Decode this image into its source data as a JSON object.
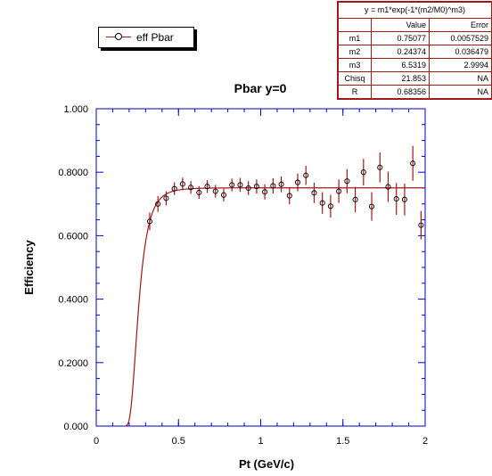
{
  "chart_data": {
    "type": "scatter",
    "title": "Pbar y=0",
    "xlabel": "Pt (GeV/c)",
    "ylabel": "Efficiency",
    "xlim": [
      0,
      2
    ],
    "ylim": [
      0,
      1
    ],
    "x_ticks": [
      {
        "value": 0,
        "label": "0"
      },
      {
        "value": 0.5,
        "label": "0.5"
      },
      {
        "value": 1,
        "label": "1"
      },
      {
        "value": 1.5,
        "label": "1.5"
      },
      {
        "value": 2,
        "label": "2"
      }
    ],
    "y_ticks": [
      {
        "value": 0,
        "label": "0.000"
      },
      {
        "value": 0.2,
        "label": "0.2000"
      },
      {
        "value": 0.4,
        "label": "0.4000"
      },
      {
        "value": 0.6,
        "label": "0.6000"
      },
      {
        "value": 0.8,
        "label": "0.8000"
      },
      {
        "value": 1,
        "label": "1.000"
      }
    ],
    "grid": false,
    "legend_position": "top-left",
    "series": [
      {
        "name": "eff Pbar",
        "points": [
          {
            "x": 0.325,
            "y": 0.645,
            "err": 0.028
          },
          {
            "x": 0.375,
            "y": 0.7,
            "err": 0.025
          },
          {
            "x": 0.425,
            "y": 0.718,
            "err": 0.022
          },
          {
            "x": 0.475,
            "y": 0.748,
            "err": 0.02
          },
          {
            "x": 0.525,
            "y": 0.763,
            "err": 0.02
          },
          {
            "x": 0.575,
            "y": 0.752,
            "err": 0.02
          },
          {
            "x": 0.625,
            "y": 0.736,
            "err": 0.02
          },
          {
            "x": 0.675,
            "y": 0.755,
            "err": 0.02
          },
          {
            "x": 0.725,
            "y": 0.74,
            "err": 0.02
          },
          {
            "x": 0.775,
            "y": 0.728,
            "err": 0.02
          },
          {
            "x": 0.825,
            "y": 0.76,
            "err": 0.02
          },
          {
            "x": 0.875,
            "y": 0.76,
            "err": 0.022
          },
          {
            "x": 0.925,
            "y": 0.75,
            "err": 0.022
          },
          {
            "x": 0.975,
            "y": 0.755,
            "err": 0.022
          },
          {
            "x": 1.025,
            "y": 0.738,
            "err": 0.024
          },
          {
            "x": 1.075,
            "y": 0.757,
            "err": 0.024
          },
          {
            "x": 1.125,
            "y": 0.762,
            "err": 0.025
          },
          {
            "x": 1.175,
            "y": 0.726,
            "err": 0.027
          },
          {
            "x": 1.225,
            "y": 0.768,
            "err": 0.028
          },
          {
            "x": 1.275,
            "y": 0.79,
            "err": 0.03
          },
          {
            "x": 1.325,
            "y": 0.735,
            "err": 0.032
          },
          {
            "x": 1.375,
            "y": 0.703,
            "err": 0.034
          },
          {
            "x": 1.425,
            "y": 0.693,
            "err": 0.036
          },
          {
            "x": 1.475,
            "y": 0.74,
            "err": 0.037
          },
          {
            "x": 1.525,
            "y": 0.772,
            "err": 0.038
          },
          {
            "x": 1.575,
            "y": 0.714,
            "err": 0.04
          },
          {
            "x": 1.625,
            "y": 0.8,
            "err": 0.042
          },
          {
            "x": 1.675,
            "y": 0.692,
            "err": 0.045
          },
          {
            "x": 1.725,
            "y": 0.815,
            "err": 0.047
          },
          {
            "x": 1.775,
            "y": 0.754,
            "err": 0.048
          },
          {
            "x": 1.825,
            "y": 0.716,
            "err": 0.05
          },
          {
            "x": 1.875,
            "y": 0.714,
            "err": 0.05
          },
          {
            "x": 1.925,
            "y": 0.828,
            "err": 0.055
          },
          {
            "x": 1.975,
            "y": 0.633,
            "err": 0.045
          }
        ]
      }
    ],
    "fit": {
      "formula": "y = m1*exp(-1*(m2/M0)^m3)",
      "m1": 0.75077,
      "m2": 0.24374,
      "m3": 6.5319
    },
    "colors": {
      "marker_edge": "#000000",
      "error_bars": "#a01818",
      "fit_line": "#a01818",
      "frame": "#0000c8"
    }
  },
  "fit_table": {
    "title": "y = m1*exp(-1*(m2/M0)^m3)",
    "headers": [
      "",
      "Value",
      "Error"
    ],
    "rows": [
      [
        "m1",
        "0.75077",
        "0.0057529"
      ],
      [
        "m2",
        "0.24374",
        "0.036479"
      ],
      [
        "m3",
        "6.5319",
        "2.9994"
      ],
      [
        "Chisq",
        "21.853",
        "NA"
      ],
      [
        "R",
        "0.68356",
        "NA"
      ]
    ]
  },
  "legend": {
    "label": "eff Pbar"
  }
}
